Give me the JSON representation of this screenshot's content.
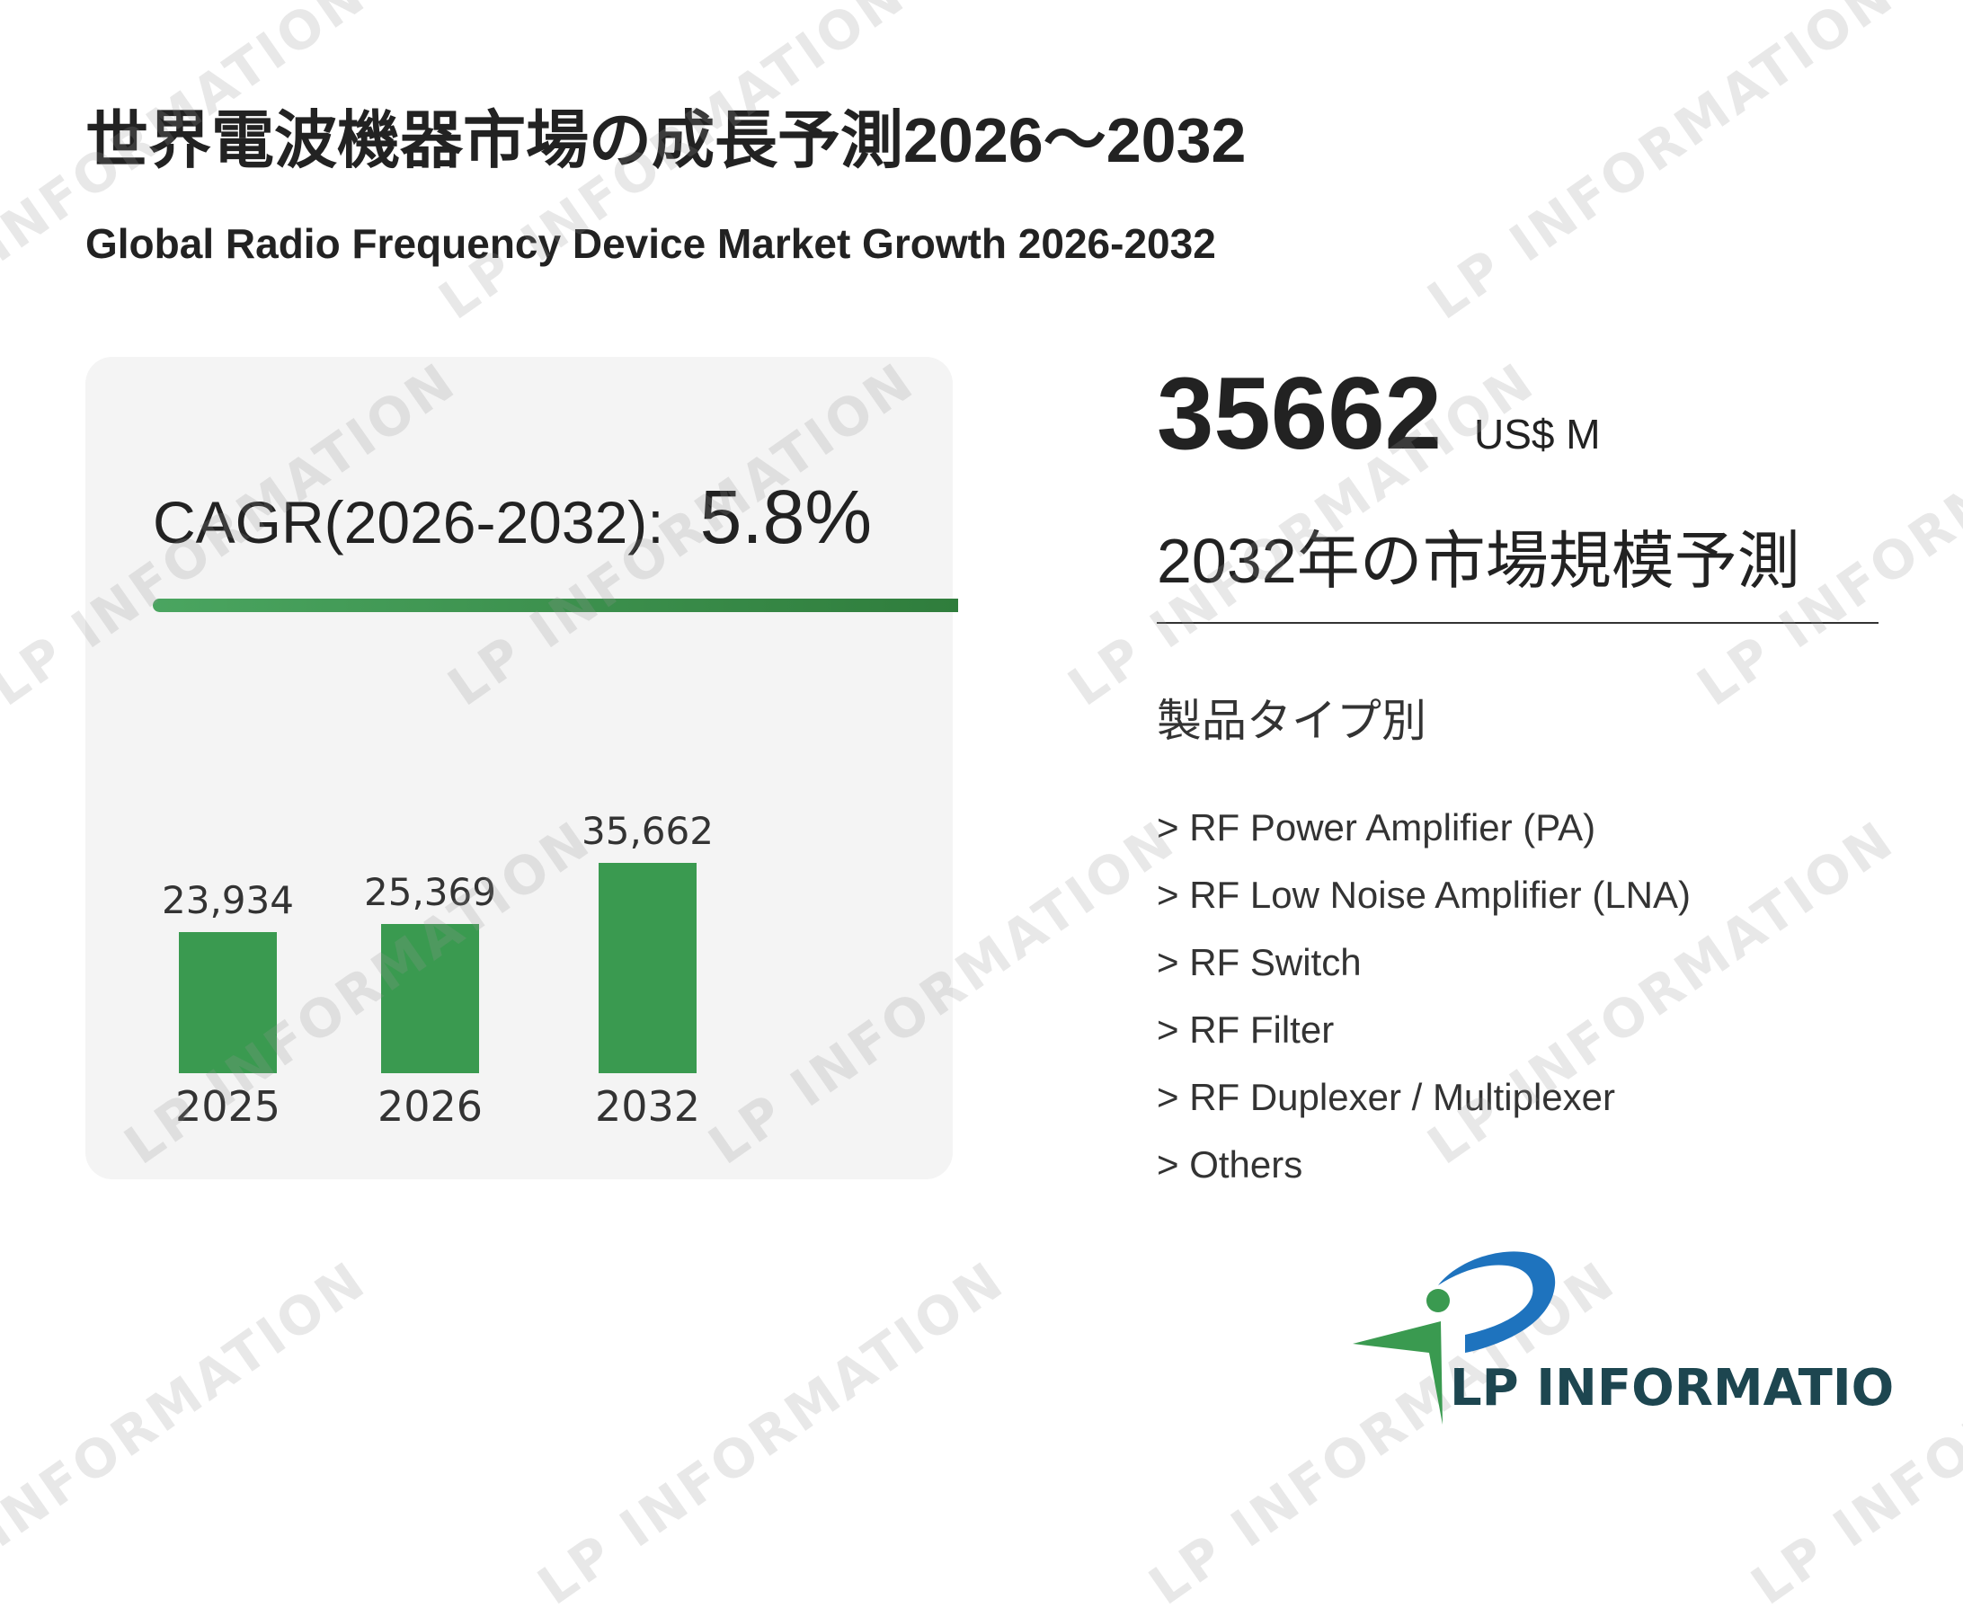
{
  "header": {
    "title": "世界電波機器市場の成長予測2026～2032",
    "subtitle": "Global Radio Frequency Device Market Growth 2026-2032"
  },
  "cagr": {
    "label": "CAGR(2026-2032):",
    "value": "5.8%"
  },
  "chart_data": {
    "type": "bar",
    "categories": [
      "2025",
      "2026",
      "2032"
    ],
    "values": [
      23934,
      25369,
      35662
    ],
    "value_labels": [
      "23,934",
      "25,369",
      "35,662"
    ],
    "bar_color": "#3a9a50",
    "ylim": [
      0,
      35662
    ],
    "grid": false
  },
  "market": {
    "value": "35662",
    "unit": "US$ M",
    "caption": "2032年の市場規模予測"
  },
  "segments": {
    "title": "製品タイプ別",
    "items": [
      "> RF Power Amplifier (PA)",
      "> RF Low Noise Amplifier (LNA)",
      "> RF Switch",
      "> RF Filter",
      "> RF Duplexer / Multiplexer",
      "> Others"
    ]
  },
  "logo": {
    "text": "LP INFORMATION",
    "green": "#3a9a50",
    "blue": "#1e73be",
    "text_color": "#1d4650"
  },
  "watermark": "LP INFORMATION"
}
